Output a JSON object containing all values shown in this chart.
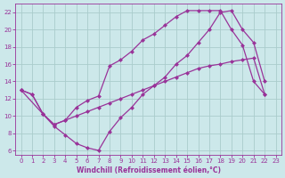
{
  "bg_color": "#cce8ea",
  "line_color": "#993399",
  "grid_color": "#aacccc",
  "xlabel": "Windchill (Refroidissement éolien,°C)",
  "xlabel_color": "#993399",
  "tick_color": "#993399",
  "xlim": [
    -0.5,
    23.5
  ],
  "ylim": [
    5.5,
    23
  ],
  "yticks": [
    6,
    8,
    10,
    12,
    14,
    16,
    18,
    20,
    22
  ],
  "xticks": [
    0,
    1,
    2,
    3,
    4,
    5,
    6,
    7,
    8,
    9,
    10,
    11,
    12,
    13,
    14,
    15,
    16,
    17,
    18,
    19,
    20,
    21,
    22,
    23
  ],
  "line1_x": [
    0,
    1,
    2,
    3,
    4,
    5,
    6,
    7,
    8,
    9,
    10,
    11,
    12,
    13,
    14,
    15,
    16,
    17,
    18,
    19,
    20,
    21,
    22
  ],
  "line1_y": [
    13,
    12.5,
    10.2,
    9.0,
    9.5,
    10.0,
    10.5,
    11.0,
    11.5,
    12.0,
    12.5,
    13.0,
    13.5,
    14.0,
    14.5,
    15.0,
    15.5,
    15.8,
    16.0,
    16.3,
    16.5,
    16.7,
    12.5
  ],
  "line2_x": [
    0,
    2,
    3,
    4,
    5,
    6,
    7,
    8,
    9,
    10,
    11,
    12,
    13,
    14,
    15,
    16,
    17,
    18,
    19,
    20,
    21,
    22
  ],
  "line2_y": [
    13,
    10.2,
    9.0,
    9.5,
    11.0,
    11.8,
    12.3,
    15.8,
    16.5,
    17.5,
    18.8,
    19.5,
    20.5,
    21.5,
    22.2,
    22.2,
    22.2,
    22.2,
    20.0,
    18.2,
    14.0,
    12.5
  ],
  "line3_x": [
    0,
    1,
    2,
    3,
    4,
    5,
    6,
    7,
    8,
    9,
    10,
    11,
    12,
    13,
    14,
    15,
    16,
    17,
    18,
    19,
    20,
    21,
    22
  ],
  "line3_y": [
    13,
    12.5,
    10.2,
    8.8,
    7.8,
    6.8,
    6.3,
    6.0,
    8.2,
    9.8,
    11.0,
    12.5,
    13.5,
    14.5,
    16.0,
    17.0,
    18.5,
    20.0,
    22.0,
    22.2,
    20.0,
    18.5,
    14.0
  ]
}
